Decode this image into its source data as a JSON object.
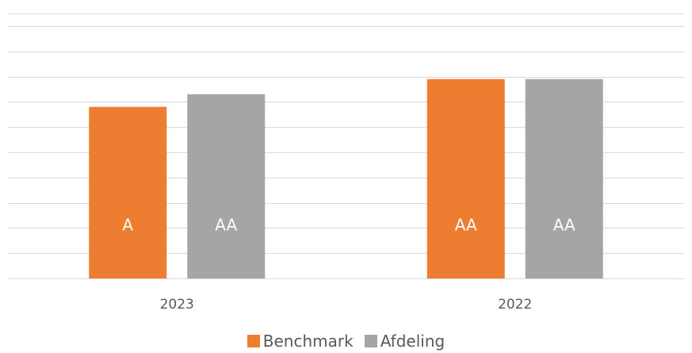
{
  "chart_data": {
    "type": "bar",
    "categories": [
      "2023",
      "2022"
    ],
    "series": [
      {
        "name": "Benchmark",
        "color": "#ED7D31",
        "values": [
          6.8,
          7.9
        ],
        "labels": [
          "A",
          "AA"
        ]
      },
      {
        "name": "Afdeling",
        "color": "#A5A5A5",
        "values": [
          7.3,
          7.9
        ],
        "labels": [
          "AA",
          "AA"
        ]
      }
    ],
    "ylim": [
      0,
      10.5
    ],
    "grid": true,
    "axis_ticks_visible": false,
    "legend_position": "bottom-center",
    "label_color": "#ffffff",
    "axis_text_color": "#595959",
    "gridline_color": "#D9D9D9"
  }
}
